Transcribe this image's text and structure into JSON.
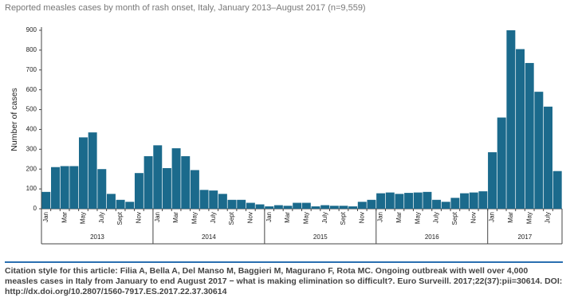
{
  "chart_data": {
    "type": "bar",
    "title": "Reported measles cases by month of rash onset, Italy, January 2013–August 2017 (n=9,559)",
    "ylabel": "Number of cases",
    "categories": [
      "Jan",
      null,
      "Mar",
      null,
      "May",
      null,
      "July",
      null,
      "Sept",
      null,
      "Nov",
      null,
      "Jan",
      null,
      "Mar",
      null,
      "May",
      null,
      "July",
      null,
      "Sept",
      null,
      "Nov",
      null,
      "Jan",
      null,
      "Mar",
      null,
      "May",
      null,
      "July",
      null,
      "Sept",
      null,
      "Nov",
      null,
      "Jan",
      null,
      "Mar",
      null,
      "May",
      null,
      "July",
      null,
      "Sept",
      null,
      "Nov",
      null,
      "Jan",
      null,
      "Mar",
      null,
      "May",
      null,
      "July",
      null
    ],
    "values": [
      85,
      210,
      215,
      215,
      360,
      385,
      200,
      75,
      45,
      35,
      180,
      265,
      320,
      205,
      305,
      265,
      195,
      95,
      92,
      75,
      45,
      45,
      30,
      22,
      12,
      18,
      15,
      30,
      30,
      12,
      18,
      15,
      15,
      12,
      35,
      45,
      78,
      82,
      75,
      80,
      82,
      85,
      45,
      35,
      55,
      78,
      82,
      88,
      285,
      460,
      900,
      805,
      735,
      590,
      515,
      190
    ],
    "groups": [
      "2013",
      "2014",
      "2015",
      "2016",
      "2017"
    ],
    "color": "#1b6a8c",
    "ylim": [
      0,
      900
    ],
    "yticks": [
      0,
      100,
      200,
      300,
      400,
      500,
      600,
      700,
      800,
      900
    ],
    "grid": false
  },
  "citation": "Citation style for this article: Filia A, Bella A, Del Manso M, Baggieri M, Magurano F, Rota MC. Ongoing outbreak with well over 4,000 measles cases in Italy from January to end August 2017 − what is making elimination so difficult?. Euro Surveill. 2017;22(37):pii=30614. DOI: http://dx.doi.org/10.2807/1560-7917.ES.2017.22.37.30614"
}
